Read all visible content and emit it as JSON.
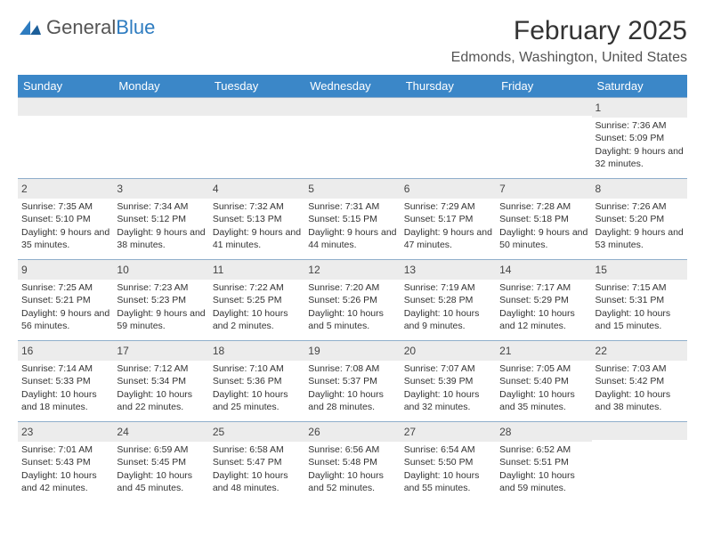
{
  "logo": {
    "part1": "General",
    "part2": "Blue"
  },
  "title": "February 2025",
  "location": "Edmonds, Washington, United States",
  "colors": {
    "header_bg": "#3b87c8",
    "header_text": "#ffffff",
    "row_border": "#8faecb",
    "daynum_bg": "#ececec",
    "body_text": "#333333",
    "logo_blue": "#2e7cc0"
  },
  "weekdays": [
    "Sunday",
    "Monday",
    "Tuesday",
    "Wednesday",
    "Thursday",
    "Friday",
    "Saturday"
  ],
  "weeks": [
    [
      null,
      null,
      null,
      null,
      null,
      null,
      {
        "n": "1",
        "sr": "7:36 AM",
        "ss": "5:09 PM",
        "dl": "9 hours and 32 minutes."
      }
    ],
    [
      {
        "n": "2",
        "sr": "7:35 AM",
        "ss": "5:10 PM",
        "dl": "9 hours and 35 minutes."
      },
      {
        "n": "3",
        "sr": "7:34 AM",
        "ss": "5:12 PM",
        "dl": "9 hours and 38 minutes."
      },
      {
        "n": "4",
        "sr": "7:32 AM",
        "ss": "5:13 PM",
        "dl": "9 hours and 41 minutes."
      },
      {
        "n": "5",
        "sr": "7:31 AM",
        "ss": "5:15 PM",
        "dl": "9 hours and 44 minutes."
      },
      {
        "n": "6",
        "sr": "7:29 AM",
        "ss": "5:17 PM",
        "dl": "9 hours and 47 minutes."
      },
      {
        "n": "7",
        "sr": "7:28 AM",
        "ss": "5:18 PM",
        "dl": "9 hours and 50 minutes."
      },
      {
        "n": "8",
        "sr": "7:26 AM",
        "ss": "5:20 PM",
        "dl": "9 hours and 53 minutes."
      }
    ],
    [
      {
        "n": "9",
        "sr": "7:25 AM",
        "ss": "5:21 PM",
        "dl": "9 hours and 56 minutes."
      },
      {
        "n": "10",
        "sr": "7:23 AM",
        "ss": "5:23 PM",
        "dl": "9 hours and 59 minutes."
      },
      {
        "n": "11",
        "sr": "7:22 AM",
        "ss": "5:25 PM",
        "dl": "10 hours and 2 minutes."
      },
      {
        "n": "12",
        "sr": "7:20 AM",
        "ss": "5:26 PM",
        "dl": "10 hours and 5 minutes."
      },
      {
        "n": "13",
        "sr": "7:19 AM",
        "ss": "5:28 PM",
        "dl": "10 hours and 9 minutes."
      },
      {
        "n": "14",
        "sr": "7:17 AM",
        "ss": "5:29 PM",
        "dl": "10 hours and 12 minutes."
      },
      {
        "n": "15",
        "sr": "7:15 AM",
        "ss": "5:31 PM",
        "dl": "10 hours and 15 minutes."
      }
    ],
    [
      {
        "n": "16",
        "sr": "7:14 AM",
        "ss": "5:33 PM",
        "dl": "10 hours and 18 minutes."
      },
      {
        "n": "17",
        "sr": "7:12 AM",
        "ss": "5:34 PM",
        "dl": "10 hours and 22 minutes."
      },
      {
        "n": "18",
        "sr": "7:10 AM",
        "ss": "5:36 PM",
        "dl": "10 hours and 25 minutes."
      },
      {
        "n": "19",
        "sr": "7:08 AM",
        "ss": "5:37 PM",
        "dl": "10 hours and 28 minutes."
      },
      {
        "n": "20",
        "sr": "7:07 AM",
        "ss": "5:39 PM",
        "dl": "10 hours and 32 minutes."
      },
      {
        "n": "21",
        "sr": "7:05 AM",
        "ss": "5:40 PM",
        "dl": "10 hours and 35 minutes."
      },
      {
        "n": "22",
        "sr": "7:03 AM",
        "ss": "5:42 PM",
        "dl": "10 hours and 38 minutes."
      }
    ],
    [
      {
        "n": "23",
        "sr": "7:01 AM",
        "ss": "5:43 PM",
        "dl": "10 hours and 42 minutes."
      },
      {
        "n": "24",
        "sr": "6:59 AM",
        "ss": "5:45 PM",
        "dl": "10 hours and 45 minutes."
      },
      {
        "n": "25",
        "sr": "6:58 AM",
        "ss": "5:47 PM",
        "dl": "10 hours and 48 minutes."
      },
      {
        "n": "26",
        "sr": "6:56 AM",
        "ss": "5:48 PM",
        "dl": "10 hours and 52 minutes."
      },
      {
        "n": "27",
        "sr": "6:54 AM",
        "ss": "5:50 PM",
        "dl": "10 hours and 55 minutes."
      },
      {
        "n": "28",
        "sr": "6:52 AM",
        "ss": "5:51 PM",
        "dl": "10 hours and 59 minutes."
      },
      null
    ]
  ],
  "labels": {
    "sunrise": "Sunrise: ",
    "sunset": "Sunset: ",
    "daylight": "Daylight: "
  }
}
